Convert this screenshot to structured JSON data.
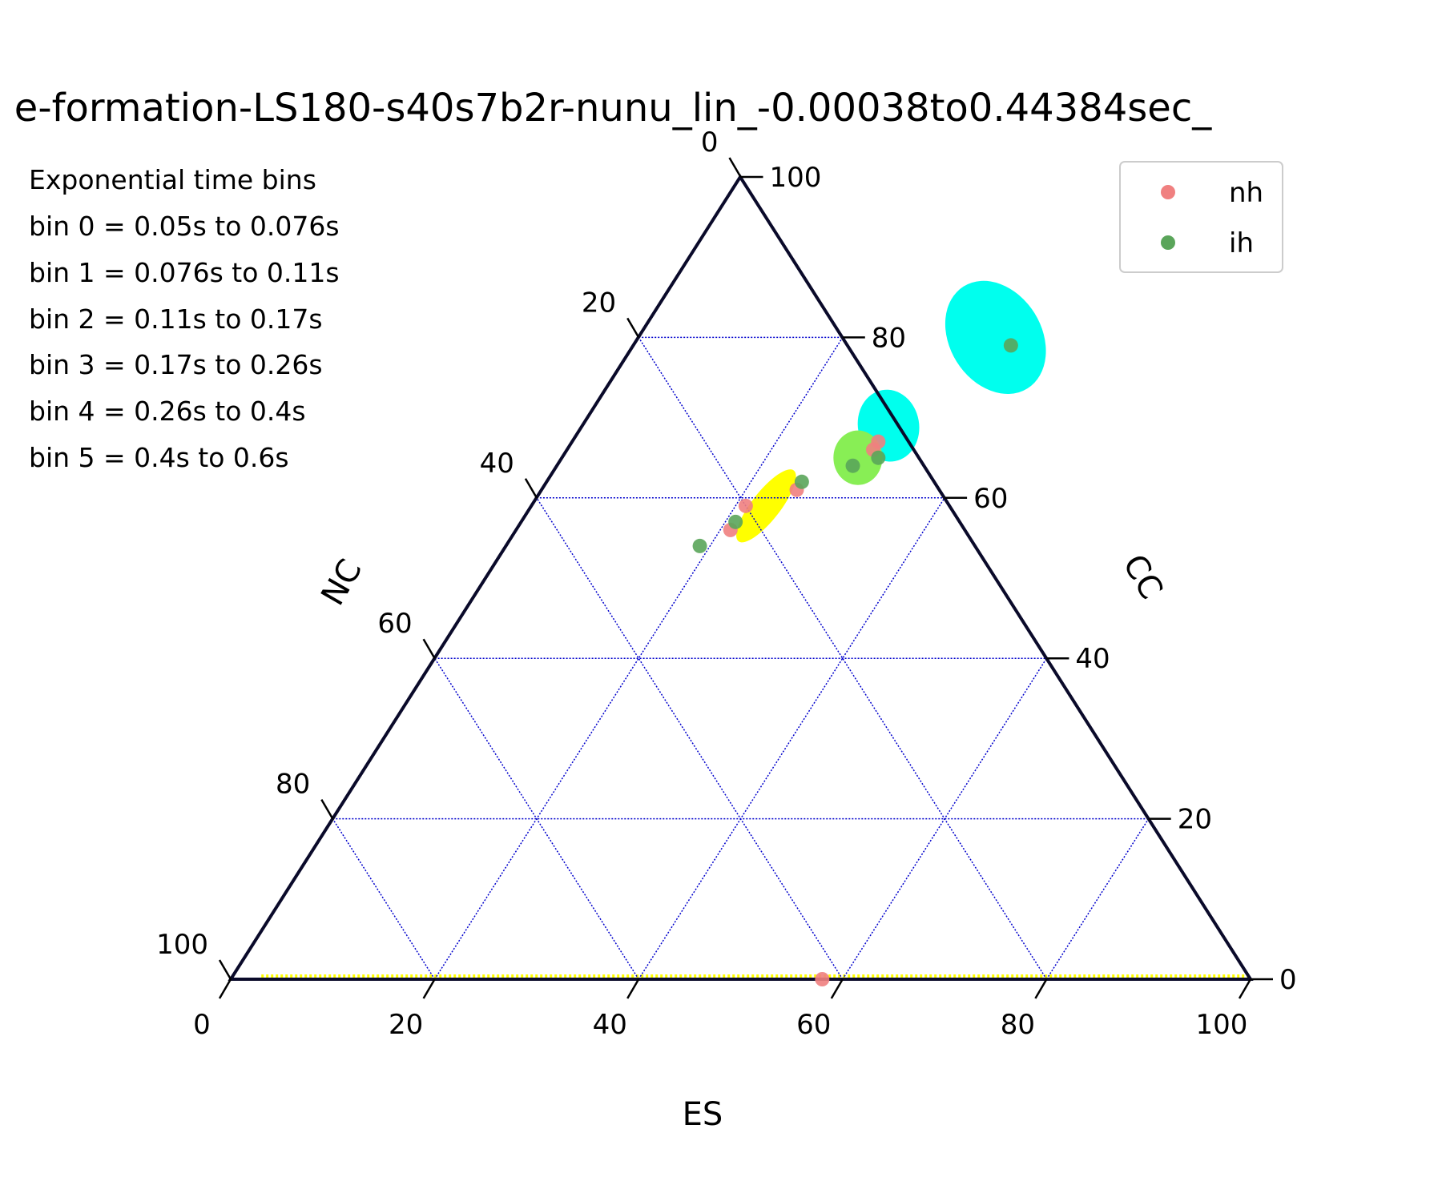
{
  "chart_data": {
    "type": "scatter",
    "subtype": "ternary",
    "title": "e-formation-LS180-s40s7b2r-nunu_lin_-0.00038to0.44384sec_",
    "axes": {
      "bottom": {
        "label": "ES",
        "ticks": [
          "0",
          "20",
          "40",
          "60",
          "80",
          "100"
        ]
      },
      "right": {
        "label": "CC",
        "ticks": [
          "0",
          "20",
          "40",
          "60",
          "80",
          "100"
        ]
      },
      "left": {
        "label": "NC",
        "ticks": [
          "0",
          "20",
          "40",
          "60",
          "80",
          "100"
        ]
      }
    },
    "grid": true,
    "grid_color": "#0000cc",
    "annotations": [
      "Exponential time bins",
      "bin 0 = 0.05s to 0.076s",
      "bin 1 = 0.076s to 0.11s",
      "bin 2 = 0.11s to 0.17s",
      "bin 3 = 0.17s to 0.26s",
      "bin 4 = 0.26s to 0.4s",
      "bin 5 = 0.4s to 0.6s"
    ],
    "legend": {
      "position": "top-right",
      "entries": [
        {
          "name": "nh",
          "color": "#f08080"
        },
        {
          "name": "ih",
          "color": "#5aa55a"
        }
      ]
    },
    "series": [
      {
        "name": "nh",
        "color": "#f08080",
        "points": [
          {
            "es": 30,
            "cc": 67,
            "nc": 3
          },
          {
            "es": 30,
            "cc": 66,
            "nc": 4
          },
          {
            "es": 25,
            "cc": 61,
            "nc": 14
          },
          {
            "es": 21,
            "cc": 56,
            "nc": 23
          },
          {
            "es": 21,
            "cc": 59,
            "nc": 20
          },
          {
            "es": 58,
            "cc": 0,
            "nc": 42
          }
        ]
      },
      {
        "name": "ih",
        "color": "#5aa55a",
        "points": [
          {
            "es": 37,
            "cc": 79,
            "nc": -16
          },
          {
            "es": 31,
            "cc": 65,
            "nc": 4
          },
          {
            "es": 29,
            "cc": 64,
            "nc": 7
          },
          {
            "es": 25,
            "cc": 62,
            "nc": 13
          },
          {
            "es": 21,
            "cc": 57,
            "nc": 22
          },
          {
            "es": 19,
            "cc": 54,
            "nc": 27
          }
        ]
      }
    ],
    "density_regions": [
      {
        "color": "#00ffee",
        "description": "large cyan region near top",
        "center": {
          "es": 35,
          "cc": 80
        },
        "rx": 4.5,
        "ry": 7.5,
        "rotate": -32
      },
      {
        "color": "#00ffee",
        "description": "small cyan region",
        "center": {
          "es": 30,
          "cc": 69
        },
        "rx": 3.0,
        "ry": 4.5,
        "rotate": -10
      },
      {
        "color": "#88ee55",
        "description": "green region",
        "center": {
          "es": 29,
          "cc": 65
        },
        "rx": 2.4,
        "ry": 3.4,
        "rotate": 0
      },
      {
        "color": "#ffff00",
        "description": "yellow streak",
        "center": {
          "es": 23,
          "cc": 59
        },
        "rx": 1.4,
        "ry": 5.6,
        "rotate": 38
      },
      {
        "color": "#ffff00",
        "description": "yellow dashed line along bottom edge",
        "cc": 0,
        "es_range": [
          3,
          100
        ]
      }
    ]
  }
}
